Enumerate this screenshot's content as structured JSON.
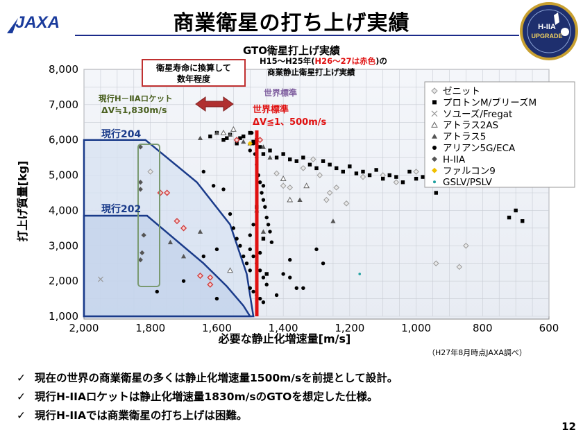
{
  "slide_title": "商業衛星の打ち上げ実績",
  "logo_text": "JAXA",
  "upgrade_logo": {
    "line1": "H-IIA",
    "line2": "UPGRADE"
  },
  "chart_title": "GTO衛星打上げ実績",
  "footnote": "（H27年8月時点JAXA調べ）",
  "page_number": "12",
  "bullets": [
    {
      "check": "✓",
      "text": "現在の世界の商業衛星の多くは静止化増速量1500m/sを前提として設計。"
    },
    {
      "check": "✓",
      "text": "現行H-IIAロケットは静止化増速量1830m/sのGTOを想定した仕様。"
    },
    {
      "check": "✓",
      "text": "現行H-IIAでは商業衛星の打ち上げは困難。"
    }
  ],
  "chart_data": {
    "type": "scatter",
    "title": "GTO衛星打上げ実績",
    "xlabel": "必要な静止化増速量[m/s]",
    "ylabel": "打上げ質量[kg]",
    "xlim": [
      2000,
      600
    ],
    "ylim": [
      1000,
      8000
    ],
    "x_ticks": [
      "2,000",
      "1,800",
      "1,600",
      "1,400",
      "1,200",
      "1,000",
      "800",
      "600"
    ],
    "y_ticks": [
      "1,000",
      "2,000",
      "3,000",
      "4,000",
      "5,000",
      "6,000",
      "7,000",
      "8,000"
    ],
    "legend_position": "top-right",
    "legend": [
      {
        "name": "ゼニット",
        "marker": "diamond-open",
        "color": "#999999"
      },
      {
        "name": "プロトンM/ブリーズM",
        "marker": "square",
        "color": "#000000"
      },
      {
        "name": "ソユーズ/Fregat",
        "marker": "cross",
        "color": "#999999"
      },
      {
        "name": "アトラス2AS",
        "marker": "triangle-open",
        "color": "#666666"
      },
      {
        "name": "アトラス5",
        "marker": "triangle",
        "color": "#555555"
      },
      {
        "name": "アリアン5G/ECA",
        "marker": "circle",
        "color": "#000000"
      },
      {
        "name": "H-IIA",
        "marker": "diamond",
        "color": "#555555"
      },
      {
        "name": "ファルコン9",
        "marker": "diamond",
        "color": "#f0c000"
      },
      {
        "name": "GSLV/PSLV",
        "marker": "circle-small",
        "color": "#20a0a0"
      }
    ],
    "annotations": {
      "h15_line1": "H15～H25年(",
      "h15_red": "H26～27は赤色",
      "h15_line1_end": ")の",
      "h15_line2": "商業静止衛星打上げ実績",
      "lifetime_line1": "衛星寿命に換算して",
      "lifetime_line2": "数年程度",
      "world_standard_purple": "世界標準",
      "world_standard_red": "世界標準",
      "world_standard_dv": "ΔV≦1、500m/s",
      "current_h2a_line1": "現行H－ⅡAロケット",
      "current_h2a_line2": "ΔV≒1,830m/s",
      "label_204": "現行204",
      "label_202": "現行202"
    },
    "regions": {
      "current_204": {
        "x": [
          2000,
          1815,
          1660,
          1560,
          1510,
          1490,
          1490,
          2000
        ],
        "y": [
          6000,
          6000,
          4800,
          3600,
          2200,
          1000,
          1000,
          1000
        ]
      },
      "current_202": {
        "x": [
          2000,
          1810,
          1640,
          1570,
          1520,
          1500,
          2000
        ],
        "y": [
          3850,
          3850,
          2500,
          1850,
          1300,
          1000,
          1000
        ]
      }
    },
    "series": [
      {
        "name": "ゼニット",
        "x": [
          1800,
          1340,
          1310,
          1290,
          1260,
          1240,
          1270,
          1210,
          1160,
          1100,
          1060,
          1000,
          940,
          870,
          850,
          1380,
          1400,
          1420
        ],
        "y": [
          5100,
          5200,
          5450,
          5000,
          4500,
          4650,
          4300,
          4200,
          4950,
          5000,
          4800,
          5100,
          2500,
          2400,
          3000,
          4650,
          4700,
          5050
        ]
      },
      {
        "name": "プロトンM/ブリーズM",
        "x": [
          1620,
          1600,
          1570,
          1560,
          1540,
          1520,
          1500,
          1490,
          1480,
          1470,
          1460,
          1440,
          1420,
          1400,
          1380,
          1360,
          1340,
          1320,
          1300,
          1280,
          1260,
          1240,
          1220,
          1200,
          1180,
          1160,
          1140,
          1120,
          1100,
          1080,
          1060,
          1040,
          1020,
          1000,
          980,
          960,
          940,
          720,
          700,
          680,
          1580,
          1530,
          1480,
          1460,
          1450
        ],
        "y": [
          6100,
          6200,
          6050,
          6150,
          5900,
          6100,
          6200,
          5950,
          6000,
          5800,
          5600,
          5700,
          5500,
          5600,
          5450,
          5400,
          5500,
          5300,
          5200,
          5400,
          5300,
          5200,
          5100,
          5250,
          5050,
          5100,
          5000,
          5150,
          4900,
          5000,
          4950,
          4800,
          5100,
          4900,
          4950,
          4750,
          4500,
          3800,
          4000,
          3700,
          6000,
          6050,
          4100,
          3200,
          2200
        ]
      },
      {
        "name": "ソユーズ/Fregat",
        "x": [
          1950
        ],
        "y": [
          2050
        ]
      },
      {
        "name": "アトラス2AS",
        "x": [
          1580,
          1550,
          1400,
          1380,
          1330,
          1560
        ],
        "y": [
          6200,
          6300,
          4900,
          4300,
          4700,
          2300
        ]
      },
      {
        "name": "アトラス5",
        "x": [
          1650,
          1600,
          1560,
          1520,
          1500,
          1460,
          1440,
          1350,
          1250,
          1480,
          1460,
          1650,
          1740,
          1700
        ],
        "y": [
          6050,
          6200,
          6150,
          5950,
          5900,
          5800,
          5500,
          4300,
          3700,
          4000,
          3400,
          3400,
          3100,
          2700
        ]
      },
      {
        "name": "アリアン5G/ECA",
        "x": [
          1640,
          1610,
          1580,
          1560,
          1550,
          1540,
          1530,
          1520,
          1510,
          1500,
          1495,
          1490,
          1485,
          1480,
          1475,
          1470,
          1465,
          1460,
          1455,
          1450,
          1445,
          1440,
          1435,
          1500,
          1490,
          1480,
          1470,
          1460,
          1500,
          1490,
          1480,
          1470,
          1460,
          1450,
          1500,
          1490,
          1470,
          1400,
          1380,
          1360,
          1420,
          1300,
          1280,
          1600,
          1640,
          1700,
          1780,
          1600,
          1500,
          1480,
          1460,
          1380,
          1340
        ],
        "y": [
          5100,
          4700,
          4600,
          3900,
          3500,
          3200,
          3000,
          2700,
          2500,
          2300,
          6200,
          5900,
          5600,
          5300,
          5000,
          4800,
          4500,
          4300,
          4100,
          3800,
          3600,
          3400,
          3100,
          2900,
          2700,
          2500,
          2300,
          2100,
          1800,
          1700,
          1600,
          1500,
          1400,
          1900,
          3300,
          3600,
          2800,
          2200,
          2100,
          1800,
          1600,
          2900,
          2500,
          2900,
          2700,
          2000,
          1700,
          1500,
          5700,
          5500,
          4700,
          2600,
          1800
        ]
      },
      {
        "name": "H-IIA",
        "x": [
          1830,
          1830,
          1830,
          1820,
          1825,
          1830
        ],
        "y": [
          5800,
          4800,
          4600,
          3300,
          2800,
          2600
        ]
      },
      {
        "name": "ファルコン9",
        "x": [
          1500
        ],
        "y": [
          5900
        ]
      },
      {
        "name": "GSLV/PSLV",
        "x": [
          1170
        ],
        "y": [
          2200
        ]
      },
      {
        "name": "H26-27",
        "x": [
          1770,
          1750,
          1720,
          1700,
          1650,
          1620,
          1620,
          1540,
          1470
        ],
        "y": [
          4500,
          4500,
          3700,
          3500,
          2150,
          2100,
          1900,
          6000,
          6000
        ]
      }
    ]
  }
}
